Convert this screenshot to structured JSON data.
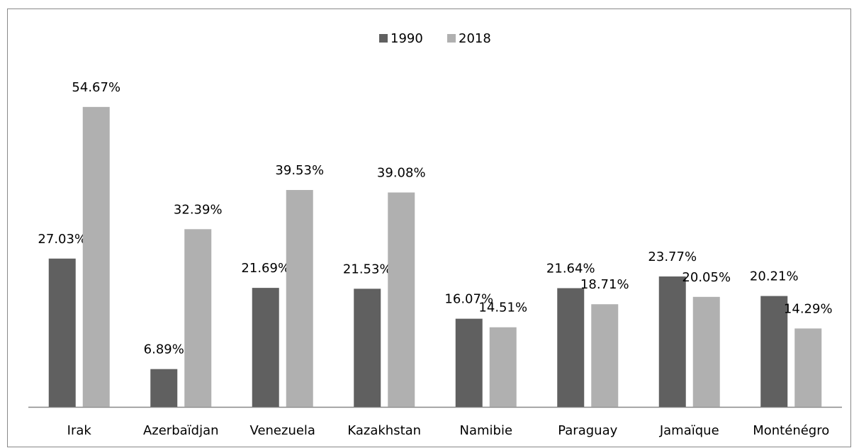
{
  "chart_data": {
    "type": "bar",
    "categories": [
      "Irak",
      "Azerbaïdjan",
      "Venezuela",
      "Kazakhstan",
      "Namibie",
      "Paraguay",
      "Jamaïque",
      "Monténégro"
    ],
    "series": [
      {
        "name": "1990",
        "color": "#606060",
        "values": [
          27.03,
          6.89,
          21.69,
          21.53,
          16.07,
          21.64,
          23.77,
          20.21
        ],
        "value_labels": [
          "27.03%",
          "6.89%",
          "21.69%",
          "21.53%",
          "16.07%",
          "21.64%",
          "23.77%",
          "20.21%"
        ]
      },
      {
        "name": "2018",
        "color": "#b0b0b0",
        "values": [
          54.67,
          32.39,
          39.53,
          39.08,
          14.51,
          18.71,
          20.05,
          14.29
        ],
        "value_labels": [
          "54.67%",
          "32.39%",
          "39.53%",
          "39.08%",
          "14.51%",
          "18.71%",
          "20.05%",
          "14.29%"
        ]
      }
    ],
    "legend": "top"
  }
}
